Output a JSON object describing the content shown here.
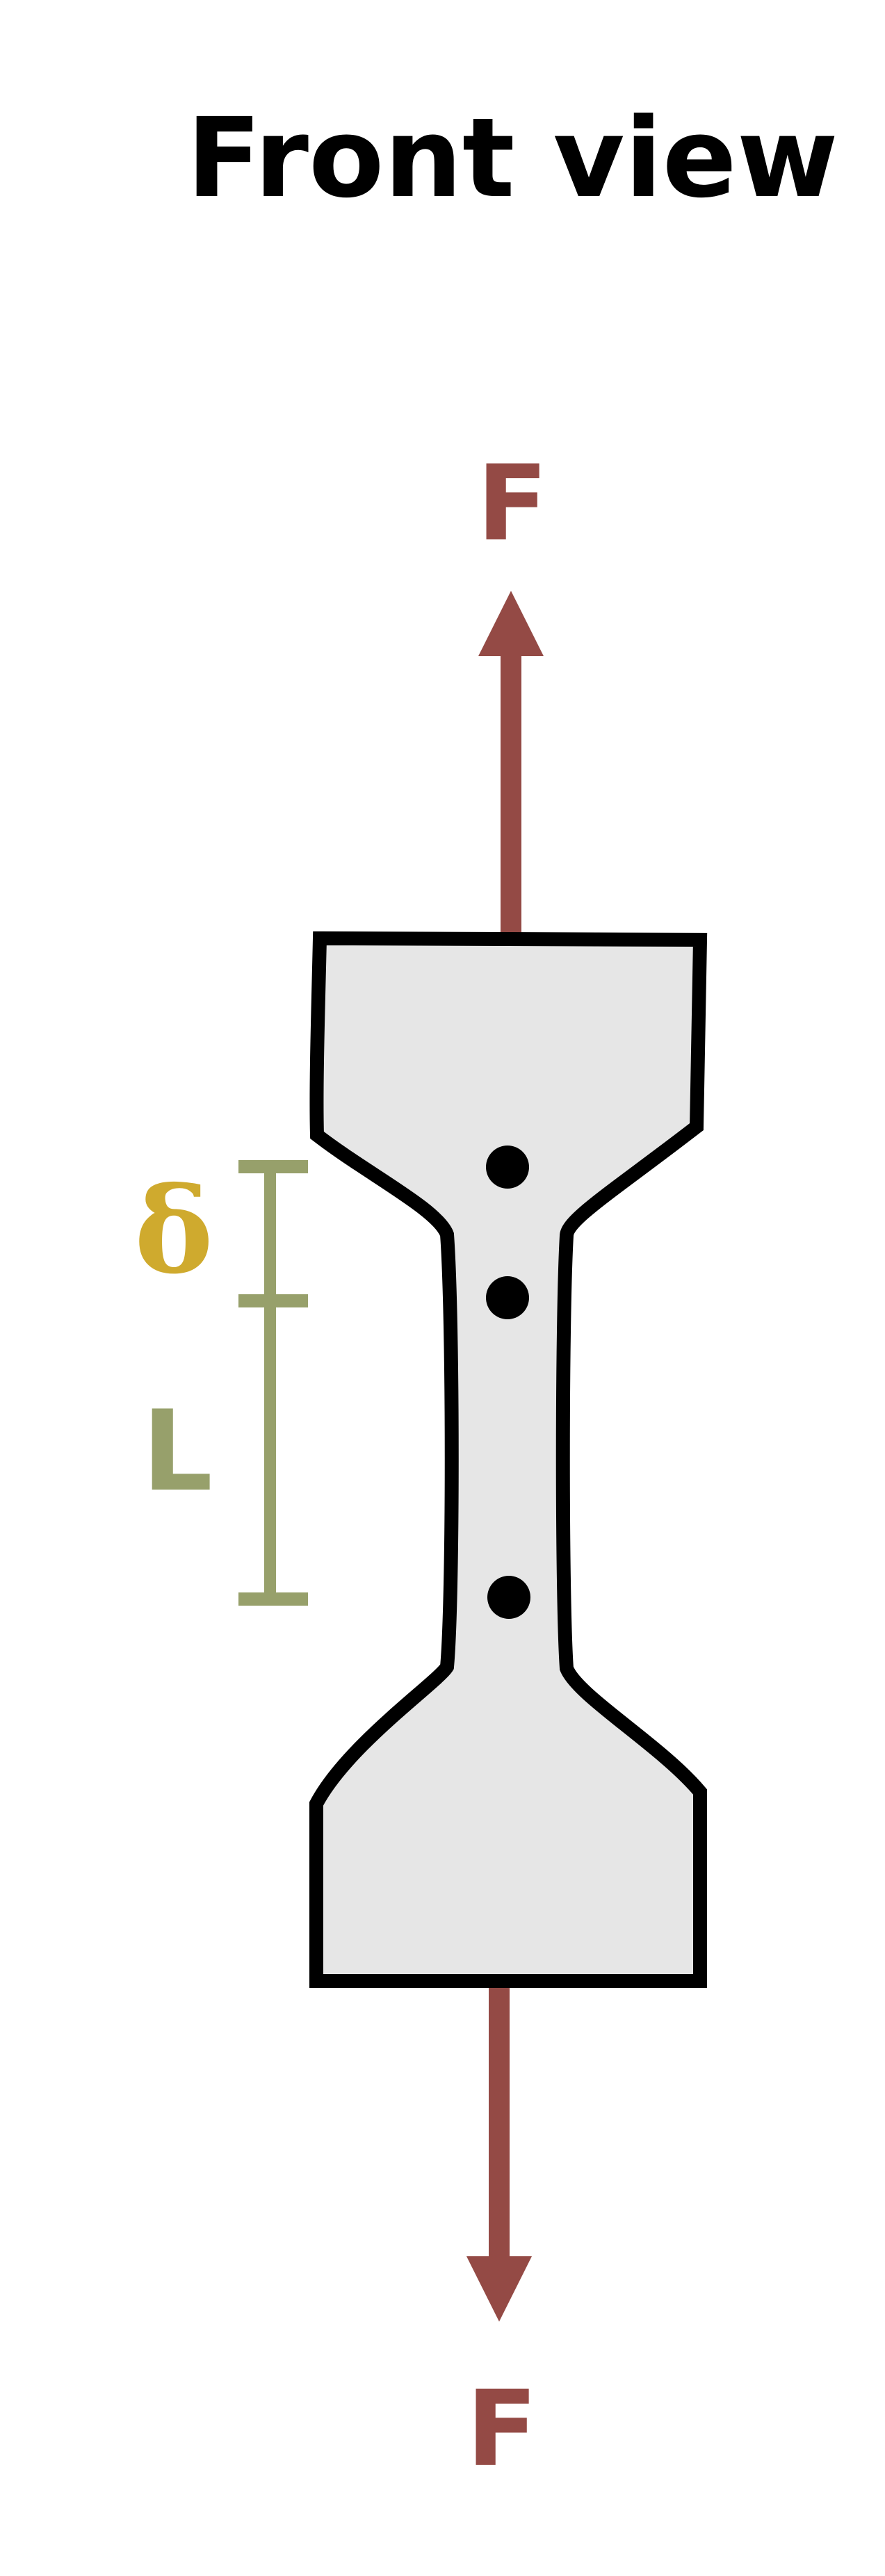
{
  "title": "Front view",
  "force_top_label": "F",
  "force_bottom_label": "F",
  "delta_label": "δ",
  "length_label": "L",
  "colors": {
    "force": "#944a45",
    "dimension": "#97a06b",
    "delta": "#cfaa2e",
    "specimen_fill": "#e6e6e6",
    "outline": "#000000",
    "title": "#000000"
  },
  "icons": {
    "force_arrow": "arrow-head-icon",
    "marker": "gauge-mark-dot"
  }
}
